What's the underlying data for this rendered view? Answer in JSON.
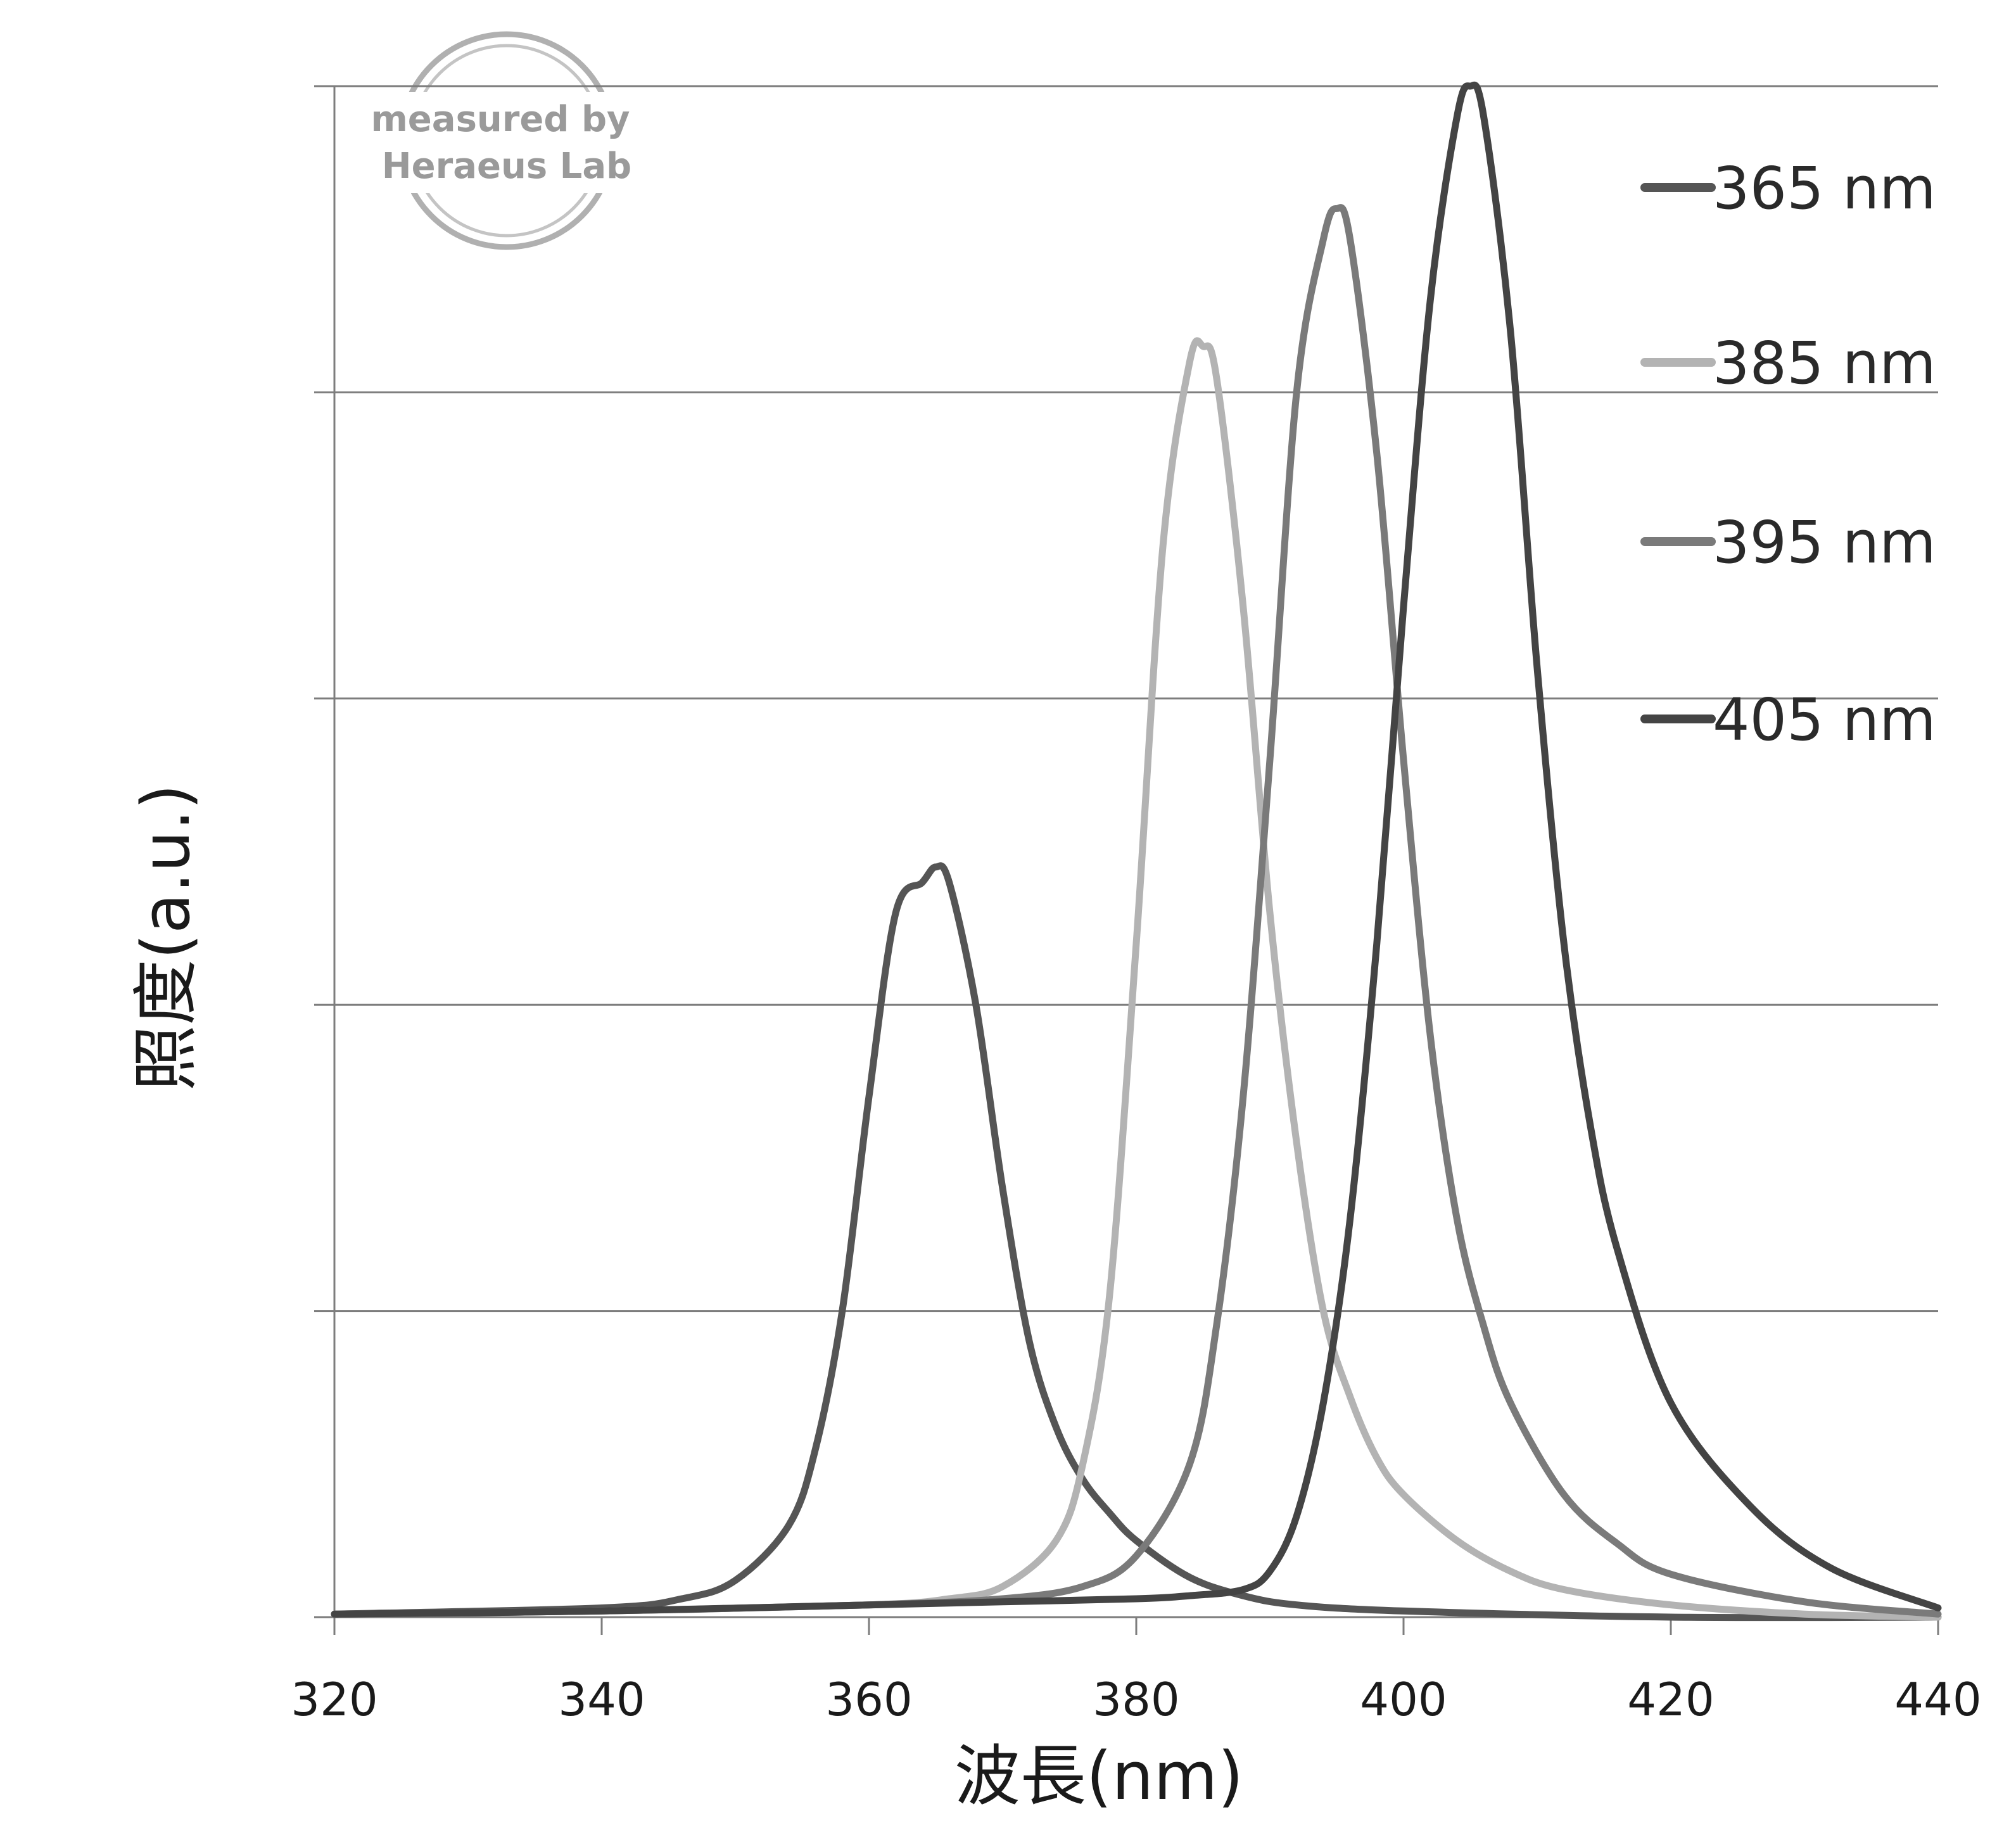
{
  "chart_data": {
    "type": "line",
    "title": "",
    "xlabel": "波長(nm)",
    "ylabel": "照度(a.u.)",
    "xlim": [
      320,
      440
    ],
    "ylim": [
      0,
      5
    ],
    "x_ticks": [
      "320",
      "340",
      "360",
      "380",
      "400",
      "420",
      "440"
    ],
    "y_tick_labels_shown": false,
    "grid": "horizontal",
    "legend_position": "top-right",
    "watermark": [
      "measured by",
      "Heraeus Lab"
    ],
    "series": [
      {
        "name": "365 nm",
        "color": "#555555",
        "x": [
          320,
          340,
          346,
          350,
          354,
          356,
          358,
          360,
          362,
          364,
          365,
          366,
          368,
          370,
          372,
          374,
          376,
          378,
          380,
          384,
          388,
          392,
          400,
          420,
          440
        ],
        "y": [
          0.01,
          0.03,
          0.06,
          0.12,
          0.3,
          0.55,
          1.0,
          1.7,
          2.3,
          2.4,
          2.45,
          2.4,
          2.0,
          1.4,
          0.9,
          0.62,
          0.45,
          0.34,
          0.25,
          0.13,
          0.07,
          0.04,
          0.02,
          0.0,
          0.0
        ]
      },
      {
        "name": "385 nm",
        "color": "#b3b3b3",
        "x": [
          320,
          340,
          360,
          366,
          370,
          374,
          376,
          378,
          380,
          382,
          384,
          385,
          386,
          388,
          390,
          392,
          394,
          396,
          398,
          400,
          404,
          408,
          412,
          420,
          430,
          440
        ],
        "y": [
          0.01,
          0.02,
          0.04,
          0.06,
          0.1,
          0.25,
          0.5,
          1.05,
          2.2,
          3.5,
          4.1,
          4.15,
          4.05,
          3.3,
          2.3,
          1.55,
          1.0,
          0.72,
          0.52,
          0.4,
          0.25,
          0.15,
          0.09,
          0.04,
          0.01,
          0.0
        ]
      },
      {
        "name": "395 nm",
        "color": "#7a7a7a",
        "x": [
          320,
          340,
          360,
          370,
          376,
          380,
          384,
          386,
          388,
          390,
          392,
          394,
          395,
          396,
          398,
          400,
          402,
          404,
          406,
          408,
          412,
          416,
          420,
          430,
          440
        ],
        "y": [
          0.01,
          0.02,
          0.04,
          0.06,
          0.1,
          0.2,
          0.5,
          0.95,
          1.7,
          2.8,
          4.0,
          4.5,
          4.6,
          4.5,
          3.8,
          2.8,
          1.9,
          1.3,
          0.95,
          0.7,
          0.4,
          0.24,
          0.14,
          0.05,
          0.01
        ]
      },
      {
        "name": "405 nm",
        "color": "#444444",
        "x": [
          320,
          340,
          360,
          370,
          380,
          384,
          388,
          390,
          392,
          394,
          396,
          398,
          400,
          402,
          404,
          405,
          406,
          408,
          410,
          412,
          414,
          416,
          420,
          426,
          432,
          440
        ],
        "y": [
          0.01,
          0.02,
          0.04,
          0.05,
          0.06,
          0.07,
          0.09,
          0.15,
          0.33,
          0.7,
          1.3,
          2.2,
          3.3,
          4.3,
          4.9,
          5.0,
          4.9,
          4.2,
          3.1,
          2.2,
          1.6,
          1.2,
          0.7,
          0.36,
          0.16,
          0.03
        ]
      }
    ]
  }
}
